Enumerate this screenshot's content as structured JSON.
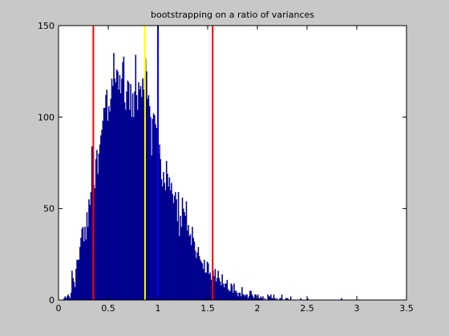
{
  "chart_data": {
    "type": "bar",
    "title": "bootstrapping on a ratio of variances",
    "xlabel": "",
    "ylabel": "",
    "xlim": [
      0,
      3.5
    ],
    "ylim": [
      0,
      150
    ],
    "xticks": [
      0,
      0.5,
      1,
      1.5,
      2,
      2.5,
      3,
      3.5
    ],
    "xtick_labels": [
      "0",
      "0.5",
      "1",
      "1.5",
      "2",
      "2.5",
      "3",
      "3.5"
    ],
    "yticks": [
      0,
      50,
      100,
      150
    ],
    "ytick_labels": [
      "0",
      "50",
      "100",
      "150"
    ],
    "grid": false,
    "bin_start": 0.05,
    "bin_width": 0.01,
    "bar_color": "#00008f",
    "values": [
      1,
      2,
      1,
      2,
      3,
      2,
      1,
      4,
      16,
      12,
      10,
      7,
      17,
      22,
      22,
      22,
      29,
      34,
      39,
      40,
      32,
      40,
      33,
      48,
      40,
      55,
      52,
      59,
      84,
      62,
      63,
      61,
      77,
      82,
      69,
      80,
      85,
      90,
      93,
      98,
      105,
      105,
      112,
      115,
      98,
      106,
      103,
      110,
      121,
      117,
      135,
      121,
      119,
      126,
      125,
      115,
      123,
      113,
      121,
      130,
      133,
      108,
      104,
      114,
      120,
      119,
      104,
      118,
      100,
      113,
      100,
      114,
      134,
      112,
      104,
      119,
      115,
      117,
      111,
      121,
      115,
      122,
      132,
      125,
      110,
      112,
      106,
      100,
      79,
      99,
      102,
      101,
      96,
      94,
      92,
      80,
      85,
      77,
      66,
      62,
      70,
      64,
      60,
      76,
      69,
      62,
      67,
      60,
      64,
      58,
      53,
      57,
      59,
      55,
      43,
      59,
      35,
      46,
      40,
      56,
      50,
      48,
      46,
      54,
      38,
      41,
      35,
      36,
      30,
      40,
      34,
      32,
      27,
      23,
      26,
      29,
      24,
      22,
      21,
      20,
      17,
      22,
      15,
      15,
      21,
      20,
      14,
      15,
      11,
      13,
      16,
      13,
      17,
      10,
      12,
      16,
      12,
      10,
      8,
      14,
      9,
      7,
      9,
      9,
      11,
      6,
      5,
      5,
      9,
      8,
      4,
      9,
      5,
      5,
      4,
      2,
      4,
      4,
      2,
      7,
      3,
      3,
      2,
      3,
      3,
      1,
      2,
      5,
      5,
      3,
      2,
      1,
      3,
      3,
      1,
      3,
      1,
      1,
      2,
      1,
      2,
      0,
      1,
      0,
      0,
      3,
      2,
      2,
      3,
      1,
      1,
      3,
      1,
      0,
      1,
      0,
      0,
      1,
      1,
      3,
      0,
      0,
      0,
      1,
      1,
      1,
      0,
      0,
      2,
      0,
      0,
      0,
      0,
      0,
      0,
      0,
      0,
      0,
      1,
      0,
      0,
      0,
      0,
      0,
      0,
      1,
      0,
      0,
      0,
      0,
      0,
      0,
      0,
      0,
      0,
      0,
      0,
      0,
      0,
      0,
      0,
      0,
      0,
      0,
      0,
      0,
      0,
      0,
      0,
      0,
      0,
      0,
      0,
      0,
      0,
      0,
      0,
      0,
      0,
      1
    ],
    "vlines": [
      {
        "x": 0.35,
        "color": "#ff0000"
      },
      {
        "x": 0.87,
        "color": "#ffff00"
      },
      {
        "x": 1.0,
        "color": "#0000ff"
      },
      {
        "x": 1.55,
        "color": "#ff0000"
      }
    ]
  }
}
